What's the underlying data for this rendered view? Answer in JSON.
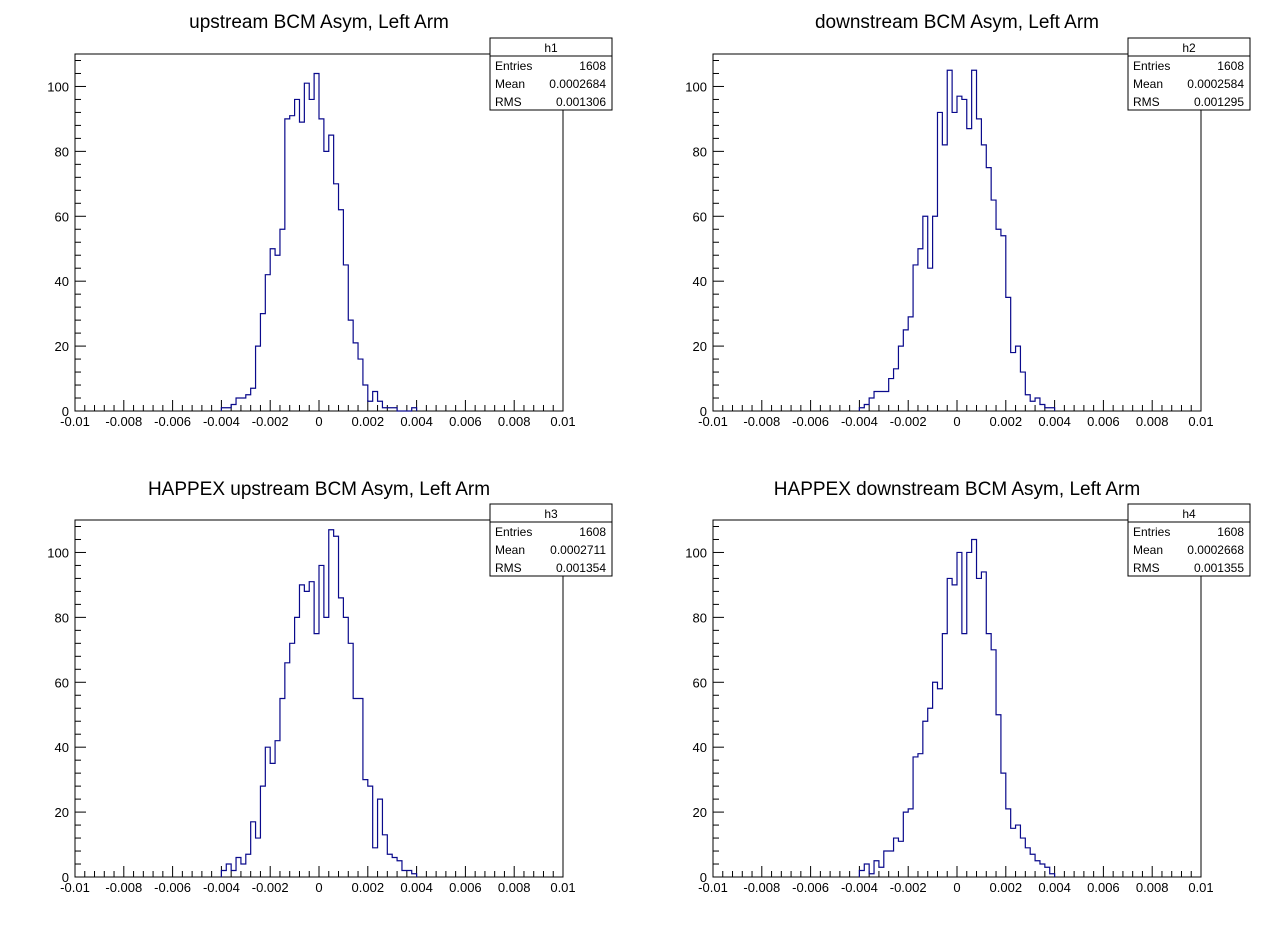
{
  "chart_data": [
    {
      "type": "histogram",
      "title": "upstream BCM Asym, Left Arm",
      "xlim": [
        -0.01,
        0.01
      ],
      "ylim": [
        0,
        110
      ],
      "xticks": [
        "-0.01",
        "-0.008",
        "-0.006",
        "-0.004",
        "-0.002",
        "0",
        "0.002",
        "0.004",
        "0.006",
        "0.008",
        "0.01"
      ],
      "yticks": [
        "0",
        "20",
        "40",
        "60",
        "80",
        "100"
      ],
      "line_color": "#0a0a8c",
      "stats": {
        "name": "h1",
        "entries": "1608",
        "mean": "0.0002684",
        "rms": "0.001306"
      },
      "bin_start": -0.004,
      "bin_width": 0.0002,
      "counts": [
        1,
        1,
        2,
        4,
        4,
        5,
        7,
        20,
        30,
        42,
        50,
        48,
        56,
        90,
        91,
        96,
        89,
        101,
        96,
        104,
        90,
        80,
        85,
        70,
        62,
        45,
        28,
        21,
        16,
        8,
        3,
        6,
        3,
        1,
        1,
        1,
        0,
        0,
        0,
        1
      ]
    },
    {
      "type": "histogram",
      "title": "downstream BCM Asym, Left Arm",
      "xlim": [
        -0.01,
        0.01
      ],
      "ylim": [
        0,
        110
      ],
      "xticks": [
        "-0.01",
        "-0.008",
        "-0.006",
        "-0.004",
        "-0.002",
        "0",
        "0.002",
        "0.004",
        "0.006",
        "0.008",
        "0.01"
      ],
      "yticks": [
        "0",
        "20",
        "40",
        "60",
        "80",
        "100"
      ],
      "line_color": "#0a0a8c",
      "stats": {
        "name": "h2",
        "entries": "1608",
        "mean": "0.0002584",
        "rms": "0.001295"
      },
      "bin_start": -0.004,
      "bin_width": 0.0002,
      "counts": [
        1,
        2,
        4,
        6,
        6,
        6,
        10,
        13,
        20,
        25,
        29,
        45,
        50,
        60,
        44,
        60,
        92,
        82,
        105,
        92,
        97,
        96,
        87,
        105,
        90,
        82,
        75,
        65,
        56,
        54,
        35,
        18,
        20,
        12,
        5,
        3,
        4,
        2,
        1,
        1
      ]
    },
    {
      "type": "histogram",
      "title": "HAPPEX upstream BCM Asym, Left Arm",
      "xlim": [
        -0.01,
        0.01
      ],
      "ylim": [
        0,
        110
      ],
      "xticks": [
        "-0.01",
        "-0.008",
        "-0.006",
        "-0.004",
        "-0.002",
        "0",
        "0.002",
        "0.004",
        "0.006",
        "0.008",
        "0.01"
      ],
      "yticks": [
        "0",
        "20",
        "40",
        "60",
        "80",
        "100"
      ],
      "line_color": "#0a0a8c",
      "stats": {
        "name": "h3",
        "entries": "1608",
        "mean": "0.0002711",
        "rms": "0.001354"
      },
      "bin_start": -0.004,
      "bin_width": 0.0002,
      "counts": [
        2,
        4,
        2,
        6,
        4,
        7,
        17,
        12,
        28,
        40,
        35,
        42,
        55,
        66,
        72,
        80,
        90,
        88,
        91,
        75,
        96,
        80,
        107,
        105,
        86,
        80,
        72,
        55,
        55,
        30,
        28,
        9,
        24,
        13,
        7,
        6,
        5,
        2,
        2,
        1
      ]
    },
    {
      "type": "histogram",
      "title": "HAPPEX downstream BCM Asym, Left Arm",
      "xlim": [
        -0.01,
        0.01
      ],
      "ylim": [
        0,
        110
      ],
      "xticks": [
        "-0.01",
        "-0.008",
        "-0.006",
        "-0.004",
        "-0.002",
        "0",
        "0.002",
        "0.004",
        "0.006",
        "0.008",
        "0.01"
      ],
      "yticks": [
        "0",
        "20",
        "40",
        "60",
        "80",
        "100"
      ],
      "line_color": "#0a0a8c",
      "stats": {
        "name": "h4",
        "entries": "1608",
        "mean": "0.0002668",
        "rms": "0.001355"
      },
      "bin_start": -0.004,
      "bin_width": 0.0002,
      "counts": [
        2,
        4,
        1,
        5,
        3,
        8,
        8,
        12,
        11,
        20,
        21,
        37,
        38,
        48,
        52,
        60,
        58,
        75,
        92,
        90,
        100,
        75,
        100,
        104,
        92,
        94,
        75,
        70,
        50,
        32,
        21,
        15,
        16,
        12,
        9,
        7,
        5,
        4,
        3,
        1
      ]
    }
  ]
}
